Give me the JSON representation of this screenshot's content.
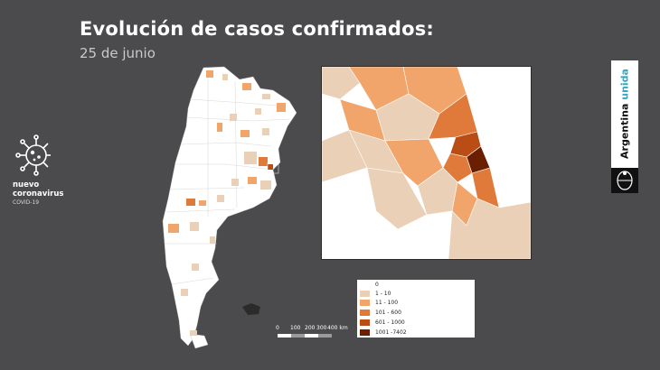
{
  "header": {
    "title": "Evolución de casos confirmados:",
    "date": "25 de junio"
  },
  "brand": {
    "line1": "nuevo",
    "line2": "coronavirus",
    "line3": "COVID-19",
    "icon": "virus-icon"
  },
  "badge": {
    "word1": "Argentina",
    "word2": "unida",
    "seal_icon": "national-seal-icon"
  },
  "legend": {
    "items": [
      {
        "label": "0",
        "color": "#ffffff"
      },
      {
        "label": "1 - 10",
        "color": "#ead0b6"
      },
      {
        "label": "11 - 100",
        "color": "#f2a56b"
      },
      {
        "label": "101 - 600",
        "color": "#e07a3a"
      },
      {
        "label": "601 - 1000",
        "color": "#b94d15"
      },
      {
        "label": "1001 -7402",
        "color": "#6a2000"
      }
    ]
  },
  "scale": {
    "labels": [
      "0",
      "100",
      "200",
      "300",
      "400 km"
    ]
  }
}
